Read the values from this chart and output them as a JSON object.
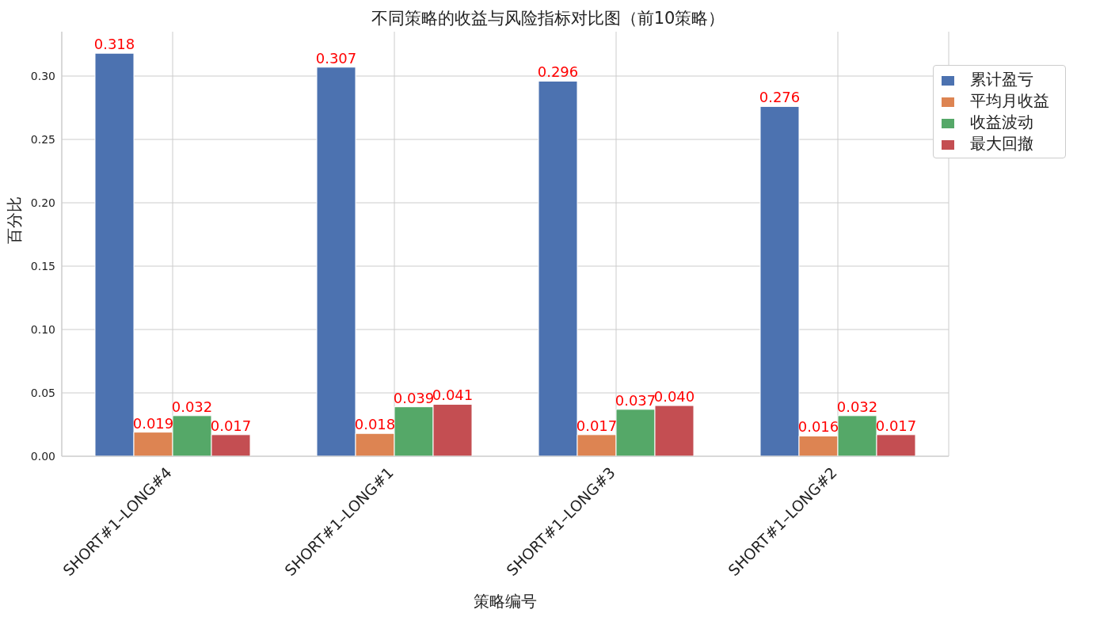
{
  "chart_data": {
    "type": "bar",
    "title": "不同策略的收益与风险指标对比图（前10策略）",
    "xlabel": "策略编号",
    "ylabel": "百分比",
    "categories": [
      "SHORT#1–LONG#4",
      "SHORT#1–LONG#1",
      "SHORT#1–LONG#3",
      "SHORT#1–LONG#2"
    ],
    "series": [
      {
        "name": "累计盈亏",
        "color": "#4c72b0",
        "values": [
          0.318,
          0.307,
          0.296,
          0.276
        ],
        "value_labels": [
          "0.318",
          "0.307",
          "0.296",
          "0.276"
        ]
      },
      {
        "name": "平均月收益",
        "color": "#dd8452",
        "values": [
          0.019,
          0.018,
          0.017,
          0.016
        ],
        "value_labels": [
          "0.019",
          "0.018",
          "0.017",
          "0.016"
        ]
      },
      {
        "name": "收益波动",
        "color": "#55a868",
        "values": [
          0.032,
          0.039,
          0.037,
          0.032
        ],
        "value_labels": [
          "0.032",
          "0.039",
          "0.037",
          "0.032"
        ]
      },
      {
        "name": "最大回撤",
        "color": "#c44e52",
        "values": [
          0.017,
          0.041,
          0.04,
          0.017
        ],
        "value_labels": [
          "0.017",
          "0.041",
          "0.040",
          "0.017"
        ]
      }
    ],
    "ylim": [
      0,
      0.335
    ],
    "yticks": [
      {
        "value": 0,
        "label": "0.00"
      },
      {
        "value": 0.05,
        "label": "0.05"
      },
      {
        "value": 0.1,
        "label": "0.10"
      },
      {
        "value": 0.15,
        "label": "0.15"
      },
      {
        "value": 0.2,
        "label": "0.20"
      },
      {
        "value": 0.25,
        "label": "0.25"
      },
      {
        "value": 0.3,
        "label": "0.30"
      }
    ],
    "grid": true,
    "legend": "top right"
  }
}
